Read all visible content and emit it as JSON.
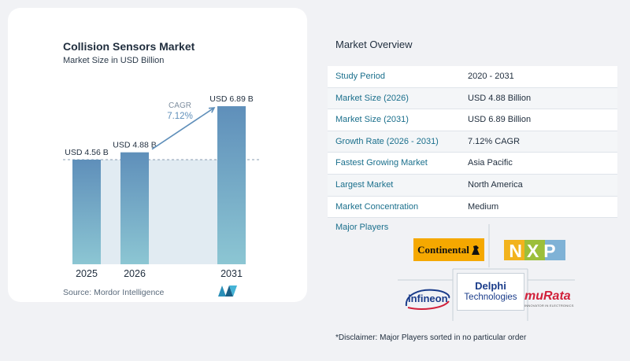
{
  "chart_data": {
    "type": "bar",
    "title": "Collision Sensors Market",
    "subtitle": "Market Size in USD Billion",
    "categories": [
      "2025",
      "2026",
      "2031"
    ],
    "values": [
      4.56,
      4.88,
      6.89
    ],
    "value_labels": [
      "USD 4.56 B",
      "USD 4.88 B",
      "USD 6.89 B"
    ],
    "ylim": [
      0,
      7.2
    ],
    "grid": false,
    "cagr_label": "CAGR",
    "cagr_value": "7.12%",
    "colors": {
      "bar_top": "#5f8fba",
      "bar_bottom": "#8cc6d3",
      "shade": "#e1ebf2",
      "dashed": "#8a9db0",
      "arrow": "#5f8fba"
    }
  },
  "source": "Source:  Mordor Intelligence",
  "overview": {
    "title": "Market Overview",
    "rows": [
      {
        "label": "Study Period",
        "value": "2020 - 2031"
      },
      {
        "label": "Market Size (2026)",
        "value": "USD 4.88 Billion"
      },
      {
        "label": "Market Size (2031)",
        "value": "USD 6.89 Billion"
      },
      {
        "label": "Growth Rate (2026 - 2031)",
        "value": "7.12% CAGR"
      },
      {
        "label": "Fastest Growing Market",
        "value": "Asia Pacific"
      },
      {
        "label": "Largest Market",
        "value": "North America"
      },
      {
        "label": "Market Concentration",
        "value": "Medium"
      }
    ],
    "row_colors": [
      "#ffffff",
      "#f4f6f8"
    ]
  },
  "players": {
    "label": "Major Players",
    "logos": {
      "continental": "Continental",
      "nxp": "NXP",
      "delphi_top": "Delphi",
      "delphi_bottom": "Technologies",
      "infineon": "infineon",
      "murata": "muRata",
      "murata_tag": "INNOVATOR IN ELECTRONICS"
    }
  },
  "disclaimer": "*Disclaimer: Major Players sorted in no particular order"
}
